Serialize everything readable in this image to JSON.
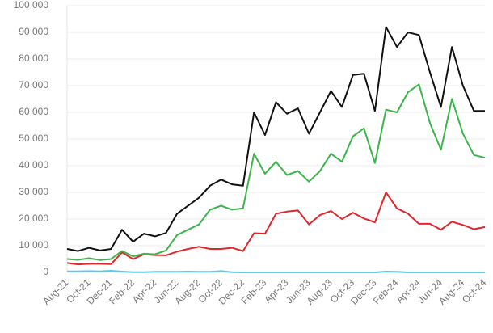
{
  "chart_data": {
    "type": "line",
    "categories": [
      "Aug-21",
      null,
      "Oct-21",
      null,
      "Dec-21",
      null,
      "Feb-22",
      null,
      "Apr-22",
      null,
      "Jun-22",
      null,
      "Aug-22",
      null,
      "Oct-22",
      null,
      "Dec-22",
      null,
      "Feb-23",
      null,
      "Apr-23",
      null,
      "Jun-23",
      null,
      "Aug-23",
      null,
      "Oct-23",
      null,
      "Dec-23",
      null,
      "Feb-24",
      null,
      "Apr-24",
      null,
      "Jun-24",
      null,
      "Aug-24",
      null,
      "Oct-24"
    ],
    "series": [
      {
        "color": "#5bc8f0",
        "values": [
          400,
          400,
          500,
          400,
          600,
          300,
          100,
          100,
          200,
          200,
          200,
          300,
          200,
          200,
          500,
          100,
          0,
          0,
          0,
          0,
          0,
          0,
          0,
          0,
          0,
          0,
          0,
          0,
          0,
          300,
          200,
          0,
          0,
          0,
          0,
          0,
          0,
          0,
          0
        ]
      },
      {
        "color": "#e0262b",
        "values": [
          3500,
          3000,
          3200,
          3200,
          3100,
          7500,
          5000,
          6800,
          6500,
          6400,
          7800,
          8800,
          9600,
          8800,
          8800,
          9200,
          8000,
          14700,
          14500,
          22000,
          22800,
          23200,
          18000,
          21500,
          23000,
          20000,
          22400,
          20200,
          18800,
          30000,
          24000,
          22000,
          18200,
          18200,
          16000,
          19000,
          17800,
          16200,
          17000
        ]
      },
      {
        "color": "#3cb44b",
        "values": [
          5000,
          4700,
          5300,
          4600,
          5000,
          8000,
          6000,
          7000,
          6800,
          8200,
          14000,
          16000,
          18000,
          23500,
          25000,
          23500,
          24000,
          44500,
          37000,
          41500,
          36500,
          38000,
          34000,
          38000,
          44500,
          41500,
          51000,
          54000,
          41000,
          61000,
          60000,
          67500,
          70500,
          56000,
          46000,
          65000,
          52000,
          44000,
          43000
        ]
      },
      {
        "color": "#111111",
        "values": [
          8800,
          8000,
          9200,
          8200,
          8800,
          16000,
          11500,
          14500,
          13500,
          14800,
          22000,
          25000,
          28000,
          32500,
          34800,
          33000,
          32500,
          60000,
          51500,
          63800,
          59500,
          61500,
          52000,
          60000,
          68000,
          62000,
          74000,
          74500,
          60500,
          92000,
          84500,
          90000,
          89000,
          75000,
          62000,
          84500,
          70000,
          60500,
          60500
        ]
      }
    ],
    "ylim": [
      0,
      100000
    ],
    "yticks": [
      0,
      {
        "value": 10000,
        "label": "10 000"
      },
      {
        "value": 20000,
        "label": "20 000"
      },
      {
        "value": 30000,
        "label": "30 000"
      },
      {
        "value": 40000,
        "label": "40 000"
      },
      {
        "value": 50000,
        "label": "50 000"
      },
      {
        "value": 60000,
        "label": "60 000"
      },
      {
        "value": 70000,
        "label": "70 000"
      },
      {
        "value": 80000,
        "label": "80 000"
      },
      {
        "value": 90000,
        "label": "90 000"
      },
      {
        "value": 100000,
        "label": "100 000"
      }
    ],
    "grid": true
  }
}
